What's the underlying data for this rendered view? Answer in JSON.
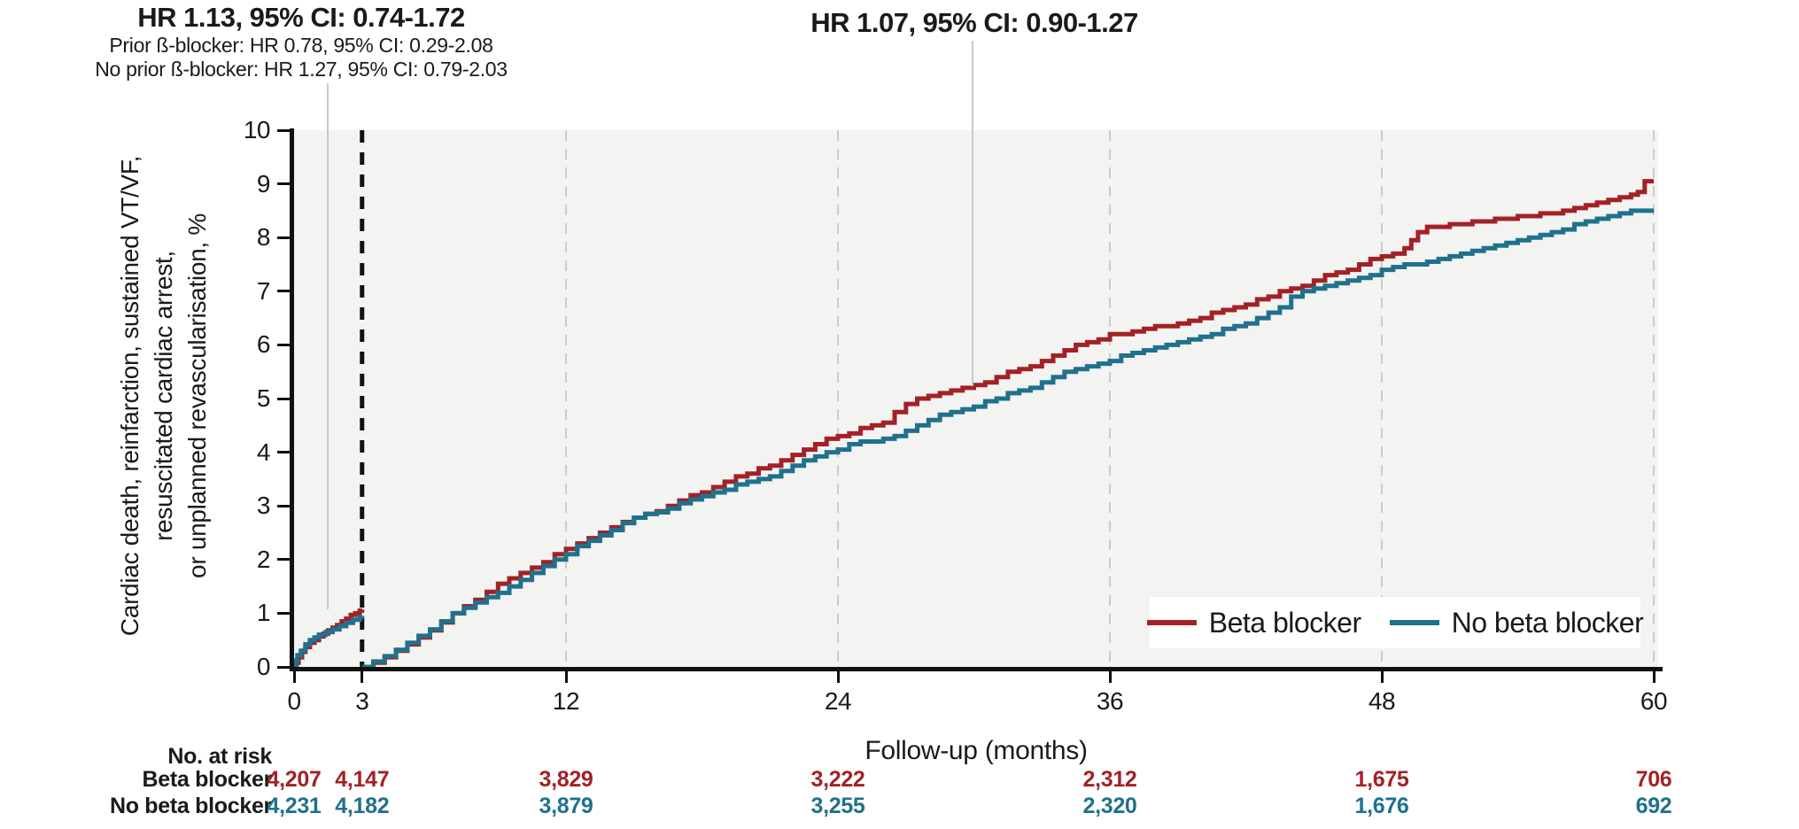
{
  "annotations": {
    "landmark": {
      "title": "HR 1.13, 95% CI: 0.74-1.72",
      "sub1": "Prior ß-blocker: HR 0.78, 95% CI: 0.29-2.08",
      "sub2": "No prior ß-blocker: HR 1.27, 95% CI: 0.79-2.03"
    },
    "overall": {
      "title": "HR 1.07, 95% CI: 0.90-1.27"
    }
  },
  "axes": {
    "ylabel_line1": "Cardiac death, reinfarction, sustained VT/VF,",
    "ylabel_line2": "resuscitated cardiac arrest,",
    "ylabel_line3": "or unplanned revascularisation, %",
    "xlabel": "Follow-up (months)",
    "yticks": [
      0,
      1,
      2,
      3,
      4,
      5,
      6,
      7,
      8,
      9,
      10
    ],
    "xticks": [
      0,
      3,
      12,
      24,
      36,
      48,
      60
    ]
  },
  "legend": {
    "items": [
      {
        "label": "Beta blocker",
        "color": "#A32126"
      },
      {
        "label": "No beta blocker",
        "color": "#1F718C"
      }
    ]
  },
  "risk_table": {
    "header": "No. at risk",
    "rows": [
      {
        "label": "Beta blocker",
        "color": "#A32126",
        "values": [
          "4,207",
          "4,147",
          "3,829",
          "3,222",
          "2,312",
          "1,675",
          "706"
        ]
      },
      {
        "label": "No beta blocker",
        "color": "#1F718C",
        "values": [
          "4,231",
          "4,182",
          "3,879",
          "3,255",
          "2,320",
          "1,676",
          "692"
        ]
      }
    ]
  },
  "chart_data": {
    "type": "line",
    "step": true,
    "title": "",
    "xlabel": "Follow-up (months)",
    "ylabel": "Cardiac death, reinfarction, sustained VT/VF, resuscitated cardiac arrest, or unplanned revascularisation, %",
    "xlim": [
      0,
      60
    ],
    "ylim": [
      0,
      10
    ],
    "xticks": [
      0,
      3,
      12,
      24,
      36,
      48,
      60
    ],
    "yticks": [
      0,
      1,
      2,
      3,
      4,
      5,
      6,
      7,
      8,
      9,
      10
    ],
    "grid": "vertical-dashed",
    "grid_months": [
      12,
      24,
      36,
      48,
      60
    ],
    "landmark_month": 3,
    "plot_bg": "#f3f3f2",
    "grid_color": "#cbcbcb",
    "annotation_line_color": "#c9c9c9",
    "legend_position": "lower right",
    "series": [
      {
        "name": "Beta blocker",
        "color": "#A32126",
        "segments": [
          [
            [
              0,
              0
            ],
            [
              0.1,
              0.08
            ],
            [
              0.2,
              0.18
            ],
            [
              0.35,
              0.28
            ],
            [
              0.5,
              0.37
            ],
            [
              0.7,
              0.45
            ],
            [
              0.9,
              0.5
            ],
            [
              1.1,
              0.57
            ],
            [
              1.3,
              0.62
            ],
            [
              1.5,
              0.68
            ],
            [
              1.7,
              0.73
            ],
            [
              1.9,
              0.78
            ],
            [
              2.1,
              0.85
            ],
            [
              2.3,
              0.9
            ],
            [
              2.5,
              0.97
            ],
            [
              2.7,
              1.0
            ],
            [
              2.9,
              1.05
            ],
            [
              3,
              1.07
            ]
          ],
          [
            [
              3,
              0
            ],
            [
              3.5,
              0.08
            ],
            [
              4,
              0.18
            ],
            [
              4.5,
              0.3
            ],
            [
              5,
              0.42
            ],
            [
              5.5,
              0.55
            ],
            [
              6,
              0.68
            ],
            [
              6.5,
              0.83
            ],
            [
              7,
              1.0
            ],
            [
              7.5,
              1.13
            ],
            [
              8,
              1.25
            ],
            [
              8.5,
              1.4
            ],
            [
              9,
              1.55
            ],
            [
              9.5,
              1.65
            ],
            [
              10,
              1.75
            ],
            [
              10.5,
              1.85
            ],
            [
              11,
              1.95
            ],
            [
              11.5,
              2.1
            ],
            [
              12,
              2.2
            ],
            [
              12.5,
              2.3
            ],
            [
              13,
              2.4
            ],
            [
              13.5,
              2.5
            ],
            [
              14,
              2.6
            ],
            [
              14.5,
              2.7
            ],
            [
              15,
              2.78
            ],
            [
              15.5,
              2.85
            ],
            [
              16,
              2.9
            ],
            [
              16.5,
              3.0
            ],
            [
              17,
              3.1
            ],
            [
              17.5,
              3.2
            ],
            [
              18,
              3.25
            ],
            [
              18.5,
              3.35
            ],
            [
              19,
              3.45
            ],
            [
              19.5,
              3.55
            ],
            [
              20,
              3.6
            ],
            [
              20.5,
              3.7
            ],
            [
              21,
              3.75
            ],
            [
              21.5,
              3.85
            ],
            [
              22,
              3.95
            ],
            [
              22.5,
              4.05
            ],
            [
              23,
              4.15
            ],
            [
              23.5,
              4.25
            ],
            [
              24,
              4.3
            ],
            [
              24.5,
              4.35
            ],
            [
              25,
              4.45
            ],
            [
              25.5,
              4.5
            ],
            [
              26,
              4.55
            ],
            [
              26.5,
              4.75
            ],
            [
              27,
              4.9
            ],
            [
              27.5,
              5.0
            ],
            [
              28,
              5.05
            ],
            [
              28.5,
              5.1
            ],
            [
              29,
              5.15
            ],
            [
              29.5,
              5.2
            ],
            [
              30,
              5.25
            ],
            [
              30.5,
              5.3
            ],
            [
              31,
              5.4
            ],
            [
              31.5,
              5.5
            ],
            [
              32,
              5.55
            ],
            [
              32.5,
              5.6
            ],
            [
              33,
              5.7
            ],
            [
              33.5,
              5.8
            ],
            [
              34,
              5.9
            ],
            [
              34.5,
              6.0
            ],
            [
              35,
              6.05
            ],
            [
              35.5,
              6.1
            ],
            [
              36,
              6.2
            ],
            [
              37,
              6.25
            ],
            [
              37.5,
              6.3
            ],
            [
              38,
              6.35
            ],
            [
              39,
              6.4
            ],
            [
              39.5,
              6.45
            ],
            [
              40,
              6.5
            ],
            [
              40.5,
              6.6
            ],
            [
              41,
              6.65
            ],
            [
              41.5,
              6.7
            ],
            [
              42,
              6.75
            ],
            [
              42.5,
              6.85
            ],
            [
              43,
              6.9
            ],
            [
              43.5,
              7.0
            ],
            [
              44,
              7.05
            ],
            [
              44.5,
              7.1
            ],
            [
              45,
              7.2
            ],
            [
              45.5,
              7.3
            ],
            [
              46,
              7.35
            ],
            [
              46.5,
              7.4
            ],
            [
              47,
              7.5
            ],
            [
              47.5,
              7.6
            ],
            [
              48,
              7.65
            ],
            [
              48.5,
              7.7
            ],
            [
              49,
              7.8
            ],
            [
              49.3,
              7.95
            ],
            [
              49.6,
              8.1
            ],
            [
              50,
              8.2
            ],
            [
              51,
              8.25
            ],
            [
              52,
              8.3
            ],
            [
              53,
              8.35
            ],
            [
              54,
              8.4
            ],
            [
              55,
              8.45
            ],
            [
              56,
              8.5
            ],
            [
              56.5,
              8.55
            ],
            [
              57,
              8.6
            ],
            [
              57.5,
              8.65
            ],
            [
              58,
              8.7
            ],
            [
              58.5,
              8.75
            ],
            [
              59,
              8.8
            ],
            [
              59.3,
              8.85
            ],
            [
              59.6,
              9.05
            ],
            [
              60,
              9.05
            ]
          ]
        ]
      },
      {
        "name": "No beta blocker",
        "color": "#1F718C",
        "segments": [
          [
            [
              0,
              0
            ],
            [
              0.08,
              0.12
            ],
            [
              0.15,
              0.22
            ],
            [
              0.3,
              0.3
            ],
            [
              0.5,
              0.42
            ],
            [
              0.7,
              0.5
            ],
            [
              0.9,
              0.55
            ],
            [
              1.1,
              0.6
            ],
            [
              1.4,
              0.65
            ],
            [
              1.7,
              0.7
            ],
            [
              2.0,
              0.76
            ],
            [
              2.3,
              0.82
            ],
            [
              2.6,
              0.88
            ],
            [
              2.9,
              0.93
            ],
            [
              3,
              0.95
            ]
          ],
          [
            [
              3,
              0
            ],
            [
              3.5,
              0.1
            ],
            [
              4,
              0.2
            ],
            [
              4.5,
              0.32
            ],
            [
              5,
              0.45
            ],
            [
              5.5,
              0.58
            ],
            [
              6,
              0.7
            ],
            [
              6.5,
              0.85
            ],
            [
              7,
              1.0
            ],
            [
              7.5,
              1.1
            ],
            [
              8,
              1.2
            ],
            [
              8.5,
              1.3
            ],
            [
              9,
              1.38
            ],
            [
              9.5,
              1.5
            ],
            [
              10,
              1.62
            ],
            [
              10.5,
              1.75
            ],
            [
              11,
              1.88
            ],
            [
              11.5,
              2.0
            ],
            [
              12,
              2.1
            ],
            [
              12.5,
              2.25
            ],
            [
              13,
              2.35
            ],
            [
              13.5,
              2.45
            ],
            [
              14,
              2.55
            ],
            [
              14.5,
              2.68
            ],
            [
              15,
              2.78
            ],
            [
              15.5,
              2.85
            ],
            [
              16,
              2.88
            ],
            [
              16.5,
              2.95
            ],
            [
              17,
              3.05
            ],
            [
              17.5,
              3.12
            ],
            [
              18,
              3.18
            ],
            [
              18.5,
              3.25
            ],
            [
              19,
              3.3
            ],
            [
              19.5,
              3.4
            ],
            [
              20,
              3.45
            ],
            [
              20.5,
              3.5
            ],
            [
              21,
              3.55
            ],
            [
              21.5,
              3.65
            ],
            [
              22,
              3.75
            ],
            [
              22.5,
              3.85
            ],
            [
              23,
              3.92
            ],
            [
              23.5,
              4.0
            ],
            [
              24,
              4.05
            ],
            [
              24.5,
              4.15
            ],
            [
              25,
              4.2
            ],
            [
              26,
              4.25
            ],
            [
              26.5,
              4.3
            ],
            [
              27,
              4.4
            ],
            [
              27.5,
              4.5
            ],
            [
              28,
              4.6
            ],
            [
              28.5,
              4.7
            ],
            [
              29,
              4.75
            ],
            [
              29.5,
              4.8
            ],
            [
              30,
              4.85
            ],
            [
              30.5,
              4.95
            ],
            [
              31,
              5.0
            ],
            [
              31.5,
              5.1
            ],
            [
              32,
              5.15
            ],
            [
              32.5,
              5.2
            ],
            [
              33,
              5.3
            ],
            [
              33.5,
              5.4
            ],
            [
              34,
              5.5
            ],
            [
              34.5,
              5.55
            ],
            [
              35,
              5.6
            ],
            [
              35.5,
              5.65
            ],
            [
              36,
              5.7
            ],
            [
              36.5,
              5.8
            ],
            [
              37,
              5.85
            ],
            [
              37.5,
              5.9
            ],
            [
              38,
              5.95
            ],
            [
              38.5,
              6.0
            ],
            [
              39,
              6.05
            ],
            [
              39.5,
              6.1
            ],
            [
              40,
              6.15
            ],
            [
              40.5,
              6.2
            ],
            [
              41,
              6.3
            ],
            [
              41.5,
              6.35
            ],
            [
              42,
              6.4
            ],
            [
              42.5,
              6.5
            ],
            [
              43,
              6.6
            ],
            [
              43.5,
              6.7
            ],
            [
              44,
              6.9
            ],
            [
              44.5,
              7.0
            ],
            [
              45,
              7.05
            ],
            [
              45.5,
              7.1
            ],
            [
              46,
              7.15
            ],
            [
              46.5,
              7.2
            ],
            [
              47,
              7.25
            ],
            [
              47.5,
              7.3
            ],
            [
              48,
              7.4
            ],
            [
              48.5,
              7.45
            ],
            [
              49,
              7.5
            ],
            [
              50,
              7.55
            ],
            [
              50.5,
              7.6
            ],
            [
              51,
              7.65
            ],
            [
              51.5,
              7.7
            ],
            [
              52,
              7.75
            ],
            [
              52.5,
              7.8
            ],
            [
              53,
              7.85
            ],
            [
              53.5,
              7.9
            ],
            [
              54,
              7.95
            ],
            [
              54.5,
              8.0
            ],
            [
              55,
              8.05
            ],
            [
              55.5,
              8.1
            ],
            [
              56,
              8.15
            ],
            [
              56.5,
              8.25
            ],
            [
              57,
              8.3
            ],
            [
              57.5,
              8.35
            ],
            [
              58,
              8.4
            ],
            [
              58.5,
              8.45
            ],
            [
              59,
              8.5
            ],
            [
              60,
              8.5
            ]
          ]
        ]
      }
    ],
    "risk_table": {
      "months": [
        0,
        3,
        12,
        24,
        36,
        48,
        60
      ],
      "beta_blocker": [
        4207,
        4147,
        3829,
        3222,
        2312,
        1675,
        706
      ],
      "no_beta_blocker": [
        4231,
        4182,
        3879,
        3255,
        2320,
        1676,
        692
      ]
    }
  }
}
